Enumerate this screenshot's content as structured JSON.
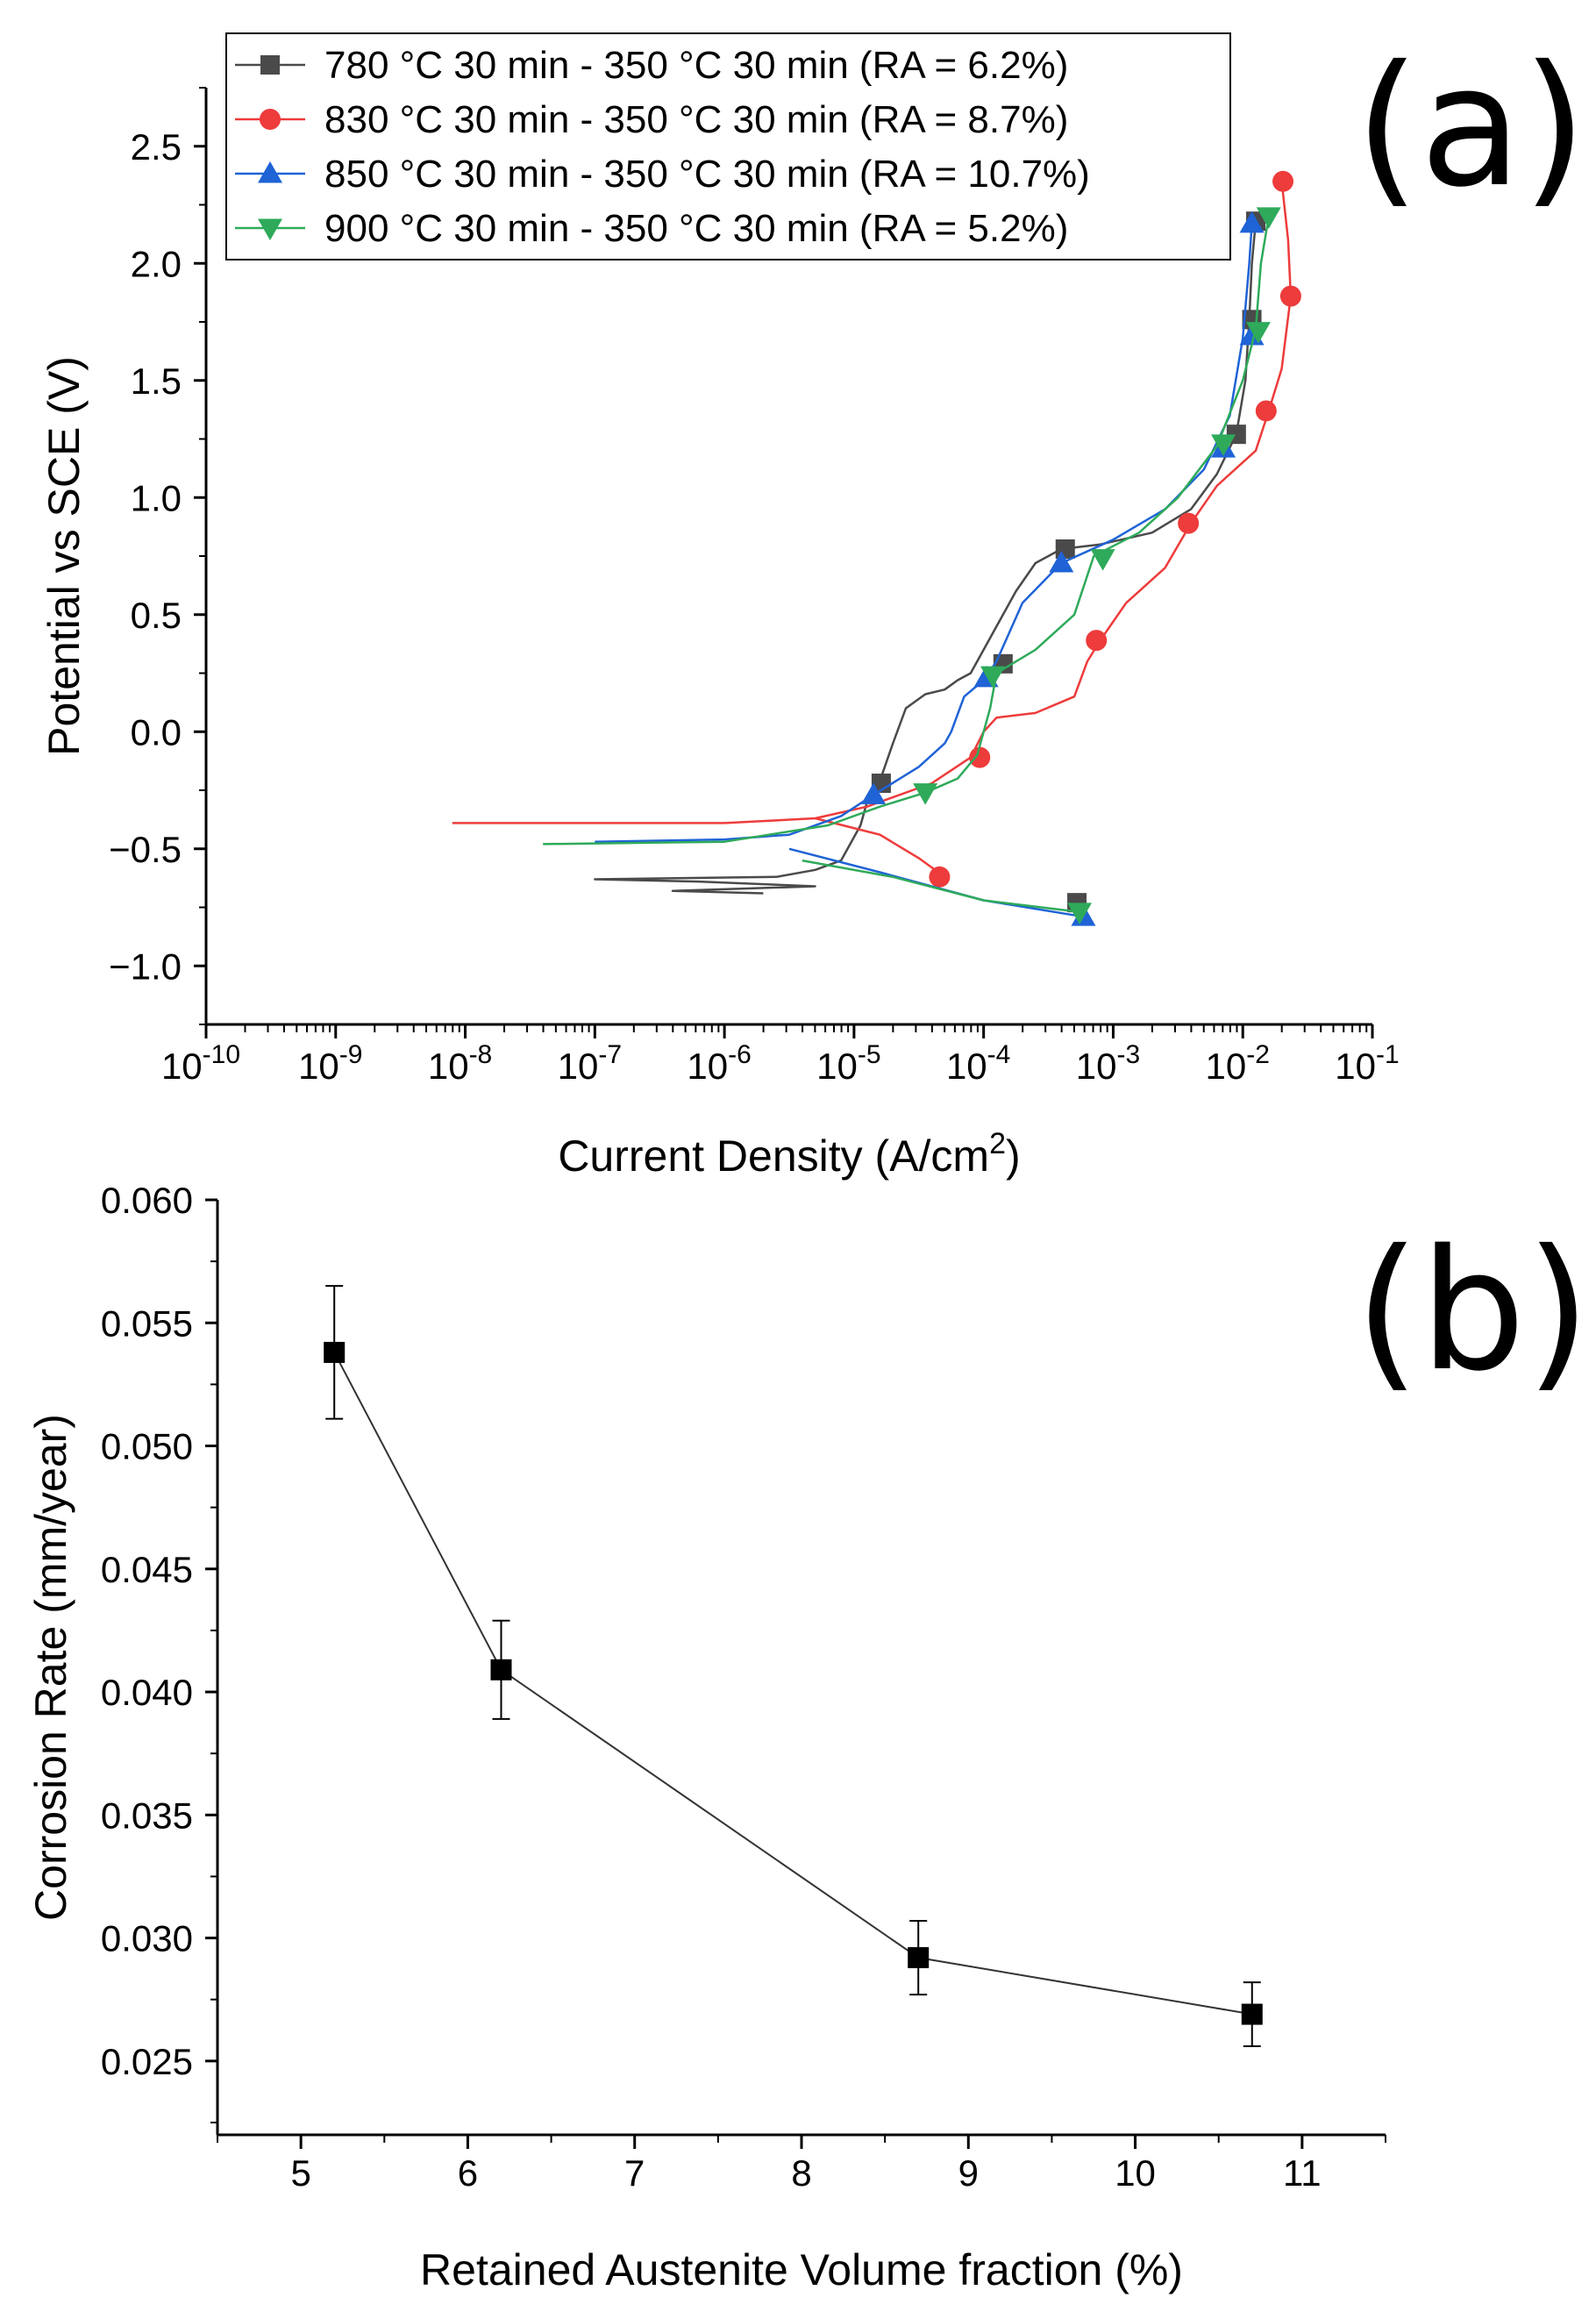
{
  "chart_data": [
    {
      "panel": "(a)",
      "type": "line",
      "xscale": "log",
      "xlabel": "Current Density (A/cm²)",
      "xlabel_base": "Current Density (A/cm",
      "xlabel_sup": "2",
      "xlabel_tail": ")",
      "ylabel": "Potential vs SCE (V)",
      "xlim_exp": [
        -10,
        -1
      ],
      "ylim": [
        -1.25,
        2.75
      ],
      "xticks_exp": [
        -10,
        -9,
        -8,
        -7,
        -6,
        -5,
        -4,
        -3,
        -2,
        -1
      ],
      "yticks": [
        -1.0,
        -0.5,
        0.0,
        0.5,
        1.0,
        1.5,
        2.0,
        2.5
      ],
      "ytick_labels": [
        "−1.0",
        "−0.5",
        "0.0",
        "0.5",
        "1.0",
        "1.5",
        "2.0",
        "2.5"
      ],
      "legend_position": "top-left",
      "series": [
        {
          "name": "780 °C 30 min - 350 °C 30 min (RA = 6.2%)",
          "color": "#4a4a4a",
          "marker": "square",
          "points": [
            [
              -5.7,
              -0.69
            ],
            [
              -6.4,
              -0.68
            ],
            [
              -5.3,
              -0.66
            ],
            [
              -6.2,
              -0.64
            ],
            [
              -7.0,
              -0.63
            ],
            [
              -5.6,
              -0.62
            ],
            [
              -5.3,
              -0.59
            ],
            [
              -5.1,
              -0.55
            ],
            [
              -4.95,
              -0.4
            ],
            [
              -4.9,
              -0.3
            ],
            [
              -4.8,
              -0.21
            ],
            [
              -4.7,
              -0.05
            ],
            [
              -4.6,
              0.1
            ],
            [
              -4.45,
              0.16
            ],
            [
              -4.3,
              0.18
            ],
            [
              -4.2,
              0.22
            ],
            [
              -4.1,
              0.25
            ],
            [
              -4.05,
              0.3
            ],
            [
              -3.9,
              0.45
            ],
            [
              -3.75,
              0.6
            ],
            [
              -3.6,
              0.72
            ],
            [
              -3.4,
              0.78
            ],
            [
              -3.1,
              0.8
            ],
            [
              -2.7,
              0.85
            ],
            [
              -2.4,
              0.95
            ],
            [
              -2.2,
              1.1
            ],
            [
              -2.05,
              1.27
            ],
            [
              -1.98,
              1.5
            ],
            [
              -1.95,
              1.76
            ],
            [
              -1.93,
              2.0
            ],
            [
              -1.9,
              2.18
            ]
          ],
          "markers": [
            [
              -4.79,
              -0.22
            ],
            [
              -3.85,
              0.29
            ],
            [
              -3.37,
              0.78
            ],
            [
              -2.05,
              1.27
            ],
            [
              -1.93,
              1.76
            ],
            [
              -1.9,
              2.18
            ],
            [
              -3.28,
              -0.73
            ]
          ]
        },
        {
          "name": "830 °C 30 min - 350 °C 30 min (RA = 8.7%)",
          "color": "#ee3b3b",
          "marker": "circle",
          "points": [
            [
              -8.1,
              -0.39
            ],
            [
              -6.0,
              -0.39
            ],
            [
              -5.3,
              -0.37
            ],
            [
              -4.9,
              -0.32
            ],
            [
              -4.4,
              -0.22
            ],
            [
              -4.1,
              -0.11
            ],
            [
              -4.0,
              0.0
            ],
            [
              -3.9,
              0.06
            ],
            [
              -3.6,
              0.08
            ],
            [
              -3.3,
              0.15
            ],
            [
              -3.2,
              0.3
            ],
            [
              -3.1,
              0.39
            ],
            [
              -2.9,
              0.55
            ],
            [
              -2.6,
              0.7
            ],
            [
              -2.4,
              0.89
            ],
            [
              -2.2,
              1.05
            ],
            [
              -1.9,
              1.2
            ],
            [
              -1.8,
              1.37
            ],
            [
              -1.7,
              1.55
            ],
            [
              -1.63,
              1.86
            ],
            [
              -1.65,
              2.1
            ],
            [
              -1.7,
              2.35
            ]
          ],
          "markers": [
            [
              -4.03,
              -0.11
            ],
            [
              -3.13,
              0.39
            ],
            [
              -2.42,
              0.89
            ],
            [
              -1.82,
              1.37
            ],
            [
              -1.63,
              1.86
            ],
            [
              -1.69,
              2.35
            ],
            [
              -4.34,
              -0.62
            ]
          ],
          "cathodic": [
            [
              -5.3,
              -0.37
            ],
            [
              -4.8,
              -0.44
            ],
            [
              -4.5,
              -0.54
            ],
            [
              -4.3,
              -0.62
            ]
          ]
        },
        {
          "name": "850 °C 30 min - 350 °C 30 min (RA = 10.7%)",
          "color": "#1f63d6",
          "marker": "triangle-up",
          "points": [
            [
              -7.0,
              -0.47
            ],
            [
              -6.0,
              -0.46
            ],
            [
              -5.5,
              -0.44
            ],
            [
              -5.1,
              -0.36
            ],
            [
              -4.85,
              -0.27
            ],
            [
              -4.5,
              -0.15
            ],
            [
              -4.3,
              -0.05
            ],
            [
              -4.25,
              0.0
            ],
            [
              -4.15,
              0.15
            ],
            [
              -4.0,
              0.22
            ],
            [
              -3.9,
              0.3
            ],
            [
              -3.7,
              0.55
            ],
            [
              -3.4,
              0.72
            ],
            [
              -3.0,
              0.82
            ],
            [
              -2.6,
              0.95
            ],
            [
              -2.3,
              1.12
            ],
            [
              -2.1,
              1.35
            ],
            [
              -2.0,
              1.68
            ],
            [
              -1.95,
              2.0
            ],
            [
              -1.93,
              2.17
            ]
          ],
          "markers": [
            [
              -4.85,
              -0.27
            ],
            [
              -3.98,
              0.23
            ],
            [
              -3.4,
              0.72
            ],
            [
              -2.15,
              1.21
            ],
            [
              -1.93,
              1.69
            ],
            [
              -1.93,
              2.17
            ],
            [
              -3.23,
              -0.79
            ]
          ],
          "cathodic": [
            [
              -5.5,
              -0.5
            ],
            [
              -4.8,
              -0.6
            ],
            [
              -4.0,
              -0.72
            ],
            [
              -3.23,
              -0.79
            ]
          ]
        },
        {
          "name": "900 °C 30 min - 350 °C 30 min (RA = 5.2%)",
          "color": "#2eaa5a",
          "marker": "triangle-down",
          "points": [
            [
              -7.4,
              -0.48
            ],
            [
              -6.0,
              -0.47
            ],
            [
              -5.2,
              -0.4
            ],
            [
              -4.8,
              -0.32
            ],
            [
              -4.45,
              -0.26
            ],
            [
              -4.2,
              -0.2
            ],
            [
              -4.05,
              -0.1
            ],
            [
              -4.0,
              0.0
            ],
            [
              -3.95,
              0.1
            ],
            [
              -3.9,
              0.25
            ],
            [
              -3.6,
              0.35
            ],
            [
              -3.3,
              0.5
            ],
            [
              -3.15,
              0.75
            ],
            [
              -2.8,
              0.85
            ],
            [
              -2.5,
              1.0
            ],
            [
              -2.2,
              1.22
            ],
            [
              -2.0,
              1.5
            ],
            [
              -1.9,
              1.72
            ],
            [
              -1.86,
              2.0
            ],
            [
              -1.8,
              2.2
            ]
          ],
          "markers": [
            [
              -4.45,
              -0.26
            ],
            [
              -3.93,
              0.24
            ],
            [
              -3.08,
              0.74
            ],
            [
              -2.15,
              1.23
            ],
            [
              -1.88,
              1.71
            ],
            [
              -1.8,
              2.2
            ],
            [
              -3.26,
              -0.77
            ]
          ],
          "cathodic": [
            [
              -5.4,
              -0.55
            ],
            [
              -4.7,
              -0.62
            ],
            [
              -4.0,
              -0.72
            ],
            [
              -3.26,
              -0.77
            ]
          ]
        }
      ]
    },
    {
      "panel": "(b)",
      "type": "scatter",
      "xlabel": "Retained Austenite Volume fraction (%)",
      "ylabel": "Corrosion Rate (mm/year)",
      "xlim": [
        4.5,
        11.5
      ],
      "ylim": [
        0.022,
        0.06
      ],
      "xticks": [
        5,
        6,
        7,
        8,
        9,
        10,
        11
      ],
      "yticks": [
        0.025,
        0.03,
        0.035,
        0.04,
        0.045,
        0.05,
        0.055,
        0.06
      ],
      "ytick_labels": [
        "0.025",
        "0.030",
        "0.035",
        "0.040",
        "0.045",
        "0.050",
        "0.055",
        "0.060"
      ],
      "x": [
        5.2,
        6.2,
        8.7,
        10.7
      ],
      "y": [
        0.0538,
        0.0409,
        0.0292,
        0.0269
      ],
      "err": [
        0.0027,
        0.002,
        0.0015,
        0.0013
      ],
      "color": "#000000",
      "marker": "square"
    }
  ]
}
